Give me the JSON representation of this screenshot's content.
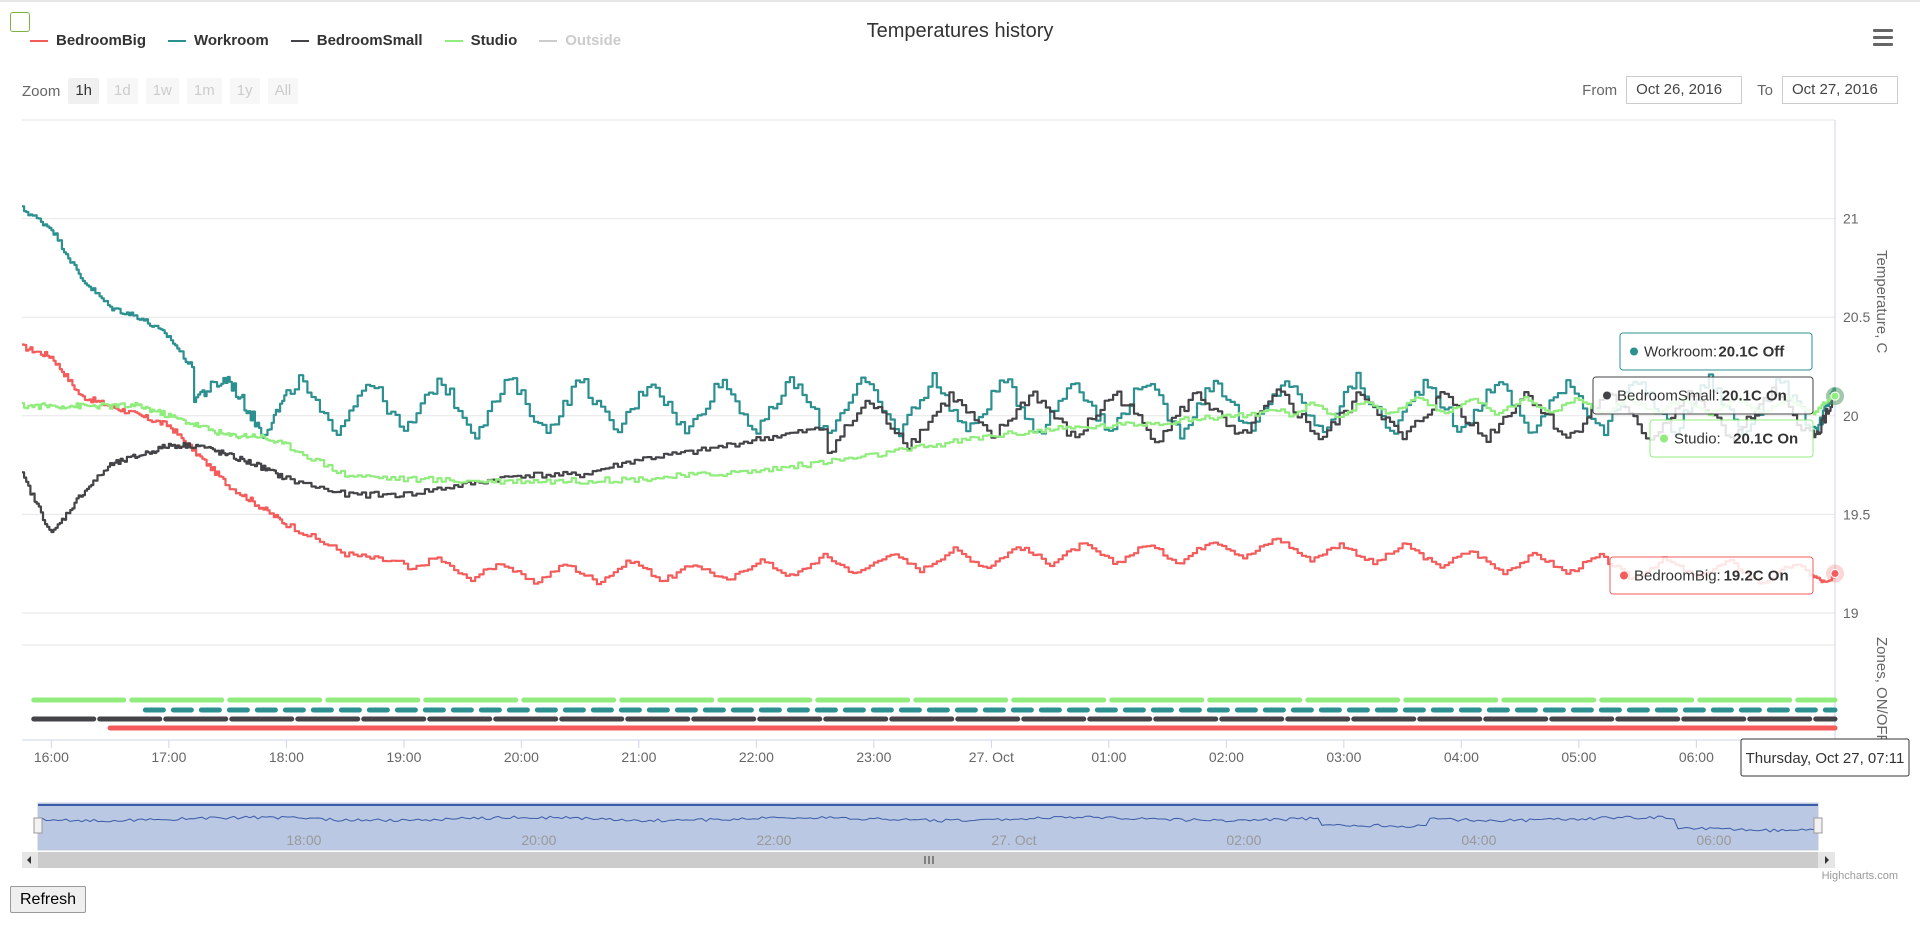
{
  "title": "Temperatures history",
  "legend": [
    {
      "name": "BedroomBig",
      "color": "#f45b5b",
      "visible": true
    },
    {
      "name": "Workroom",
      "color": "#2b908f",
      "visible": true
    },
    {
      "name": "BedroomSmall",
      "color": "#434348",
      "visible": true
    },
    {
      "name": "Studio",
      "color": "#90ed7d",
      "visible": true
    },
    {
      "name": "Outside",
      "color": "#cccccc",
      "visible": false
    }
  ],
  "zoom": {
    "label": "Zoom",
    "buttons": [
      "1h",
      "1d",
      "1w",
      "1m",
      "1y",
      "All"
    ],
    "active": "1h"
  },
  "range": {
    "from_label": "From",
    "from_value": "Oct 26, 2016",
    "to_label": "To",
    "to_value": "Oct 27, 2016"
  },
  "chart_data": {
    "type": "line",
    "title": "Temperatures history",
    "x_ticks": [
      "16:00",
      "17:00",
      "18:00",
      "19:00",
      "20:00",
      "21:00",
      "22:00",
      "23:00",
      "27. Oct",
      "01:00",
      "02:00",
      "03:00",
      "04:00",
      "05:00",
      "06:00"
    ],
    "y_axis": {
      "title": "Temperature, C",
      "ticks": [
        "21",
        "20.5",
        "20",
        "19.5",
        "19"
      ],
      "range": [
        19,
        21.5
      ]
    },
    "zones_axis": {
      "title": "Zones, ON/OFF"
    },
    "x_hours": [
      15.75,
      16.0,
      16.25,
      16.5,
      16.75,
      17.0,
      17.25,
      17.5,
      17.75,
      18.0,
      18.5,
      19.0,
      19.5,
      20.0,
      20.5,
      21.0,
      21.5,
      22.0,
      22.5,
      23.0,
      23.5,
      24.0,
      24.5,
      25.0,
      25.5,
      26.0,
      26.5,
      27.0,
      27.5,
      28.0,
      28.5,
      29.0,
      29.5,
      30.0,
      30.5,
      31.0,
      31.18
    ],
    "series": [
      {
        "name": "BedroomBig",
        "color": "#f45b5b",
        "values": [
          20.35,
          20.3,
          20.1,
          20.05,
          20.0,
          19.95,
          19.8,
          19.65,
          19.55,
          19.45,
          19.3,
          19.25,
          19.22,
          19.2,
          19.2,
          19.22,
          19.2,
          19.22,
          19.24,
          19.25,
          19.27,
          19.28,
          19.3,
          19.3,
          19.3,
          19.33,
          19.33,
          19.3,
          19.3,
          19.27,
          19.25,
          19.25,
          19.22,
          19.23,
          19.2,
          19.2,
          19.2
        ]
      },
      {
        "name": "Workroom",
        "color": "#2b908f",
        "values": [
          21.05,
          20.95,
          20.7,
          20.55,
          20.5,
          20.4,
          20.2,
          20.05,
          20.05,
          20.05,
          20.05,
          20.05,
          20.05,
          20.05,
          20.05,
          20.05,
          20.05,
          20.05,
          20.05,
          20.05,
          20.05,
          20.05,
          20.05,
          20.05,
          20.05,
          20.05,
          20.05,
          20.05,
          20.05,
          20.05,
          20.05,
          20.05,
          20.05,
          20.05,
          20.05,
          20.05,
          20.1
        ]
      },
      {
        "name": "BedroomSmall",
        "color": "#434348",
        "values": [
          19.7,
          19.4,
          19.6,
          19.75,
          19.8,
          19.85,
          19.85,
          19.8,
          19.75,
          19.68,
          19.6,
          19.6,
          19.65,
          19.7,
          19.7,
          19.78,
          19.82,
          19.88,
          19.93,
          19.96,
          19.98,
          20.0,
          20.0,
          20.0,
          20.0,
          20.0,
          20.0,
          20.0,
          20.0,
          20.0,
          20.0,
          20.0,
          20.0,
          20.0,
          20.0,
          20.0,
          20.1
        ]
      },
      {
        "name": "Studio",
        "color": "#90ed7d",
        "values": [
          20.05,
          20.05,
          20.05,
          20.05,
          20.05,
          20.0,
          19.95,
          19.9,
          19.9,
          19.85,
          19.7,
          19.68,
          19.67,
          19.67,
          19.67,
          19.68,
          19.7,
          19.72,
          19.76,
          19.8,
          19.85,
          19.9,
          19.93,
          19.95,
          19.97,
          20.0,
          20.02,
          20.03,
          20.05,
          20.05,
          20.05,
          20.05,
          20.05,
          20.05,
          20.05,
          20.05,
          20.1
        ]
      }
    ],
    "zones": [
      {
        "name": "Studio",
        "color": "#90ed7d",
        "state": "on"
      },
      {
        "name": "Workroom",
        "color": "#2b908f",
        "state": "off"
      },
      {
        "name": "BedroomSmall",
        "color": "#434348",
        "state": "on"
      },
      {
        "name": "BedroomBig",
        "color": "#f45b5b",
        "state": "on"
      }
    ],
    "navigator_ticks": [
      "18:00",
      "20:00",
      "22:00",
      "27. Oct",
      "02:00",
      "04:00",
      "06:00"
    ],
    "tooltips": [
      {
        "series": "Workroom",
        "label": "Workroom:",
        "value": "20.1C Off",
        "color": "#2b908f"
      },
      {
        "series": "BedroomSmall",
        "label": "BedroomSmall:",
        "value": "20.1C On",
        "color": "#434348"
      },
      {
        "series": "Studio",
        "label": "Studio:",
        "value": "20.1C On",
        "color": "#90ed7d"
      },
      {
        "series": "BedroomBig",
        "label": "BedroomBig:",
        "value": "19.2C On",
        "color": "#f45b5b"
      }
    ],
    "x_tooltip": "Thursday, Oct 27, 07:11"
  },
  "refresh_label": "Refresh",
  "credits": "Highcharts.com"
}
